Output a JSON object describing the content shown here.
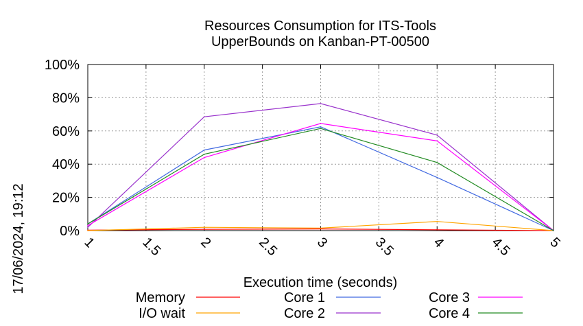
{
  "chart_data": {
    "type": "line",
    "title": "Resources Consumption for ITS-Tools",
    "subtitle": "UpperBounds on Kanban-PT-00500",
    "xlabel": "Execution time (seconds)",
    "ylabel": "",
    "timestamp": "17/06/2024, 19:12",
    "xlim": [
      1,
      5
    ],
    "ylim": [
      0,
      100
    ],
    "xticks": [
      "1",
      "1.5",
      "2",
      "2.5",
      "3",
      "3.5",
      "4",
      "4.5",
      "5"
    ],
    "yticks": [
      "0%",
      "20%",
      "40%",
      "60%",
      "80%",
      "100%"
    ],
    "grid": true,
    "legend_position": "bottom",
    "series": [
      {
        "name": "Memory",
        "color": "#ff0000",
        "x": [
          1,
          2,
          3,
          4,
          5
        ],
        "y": [
          0.3,
          0.8,
          1.0,
          0.5,
          0
        ]
      },
      {
        "name": "I/O wait",
        "color": "#ffa500",
        "x": [
          1,
          2,
          3,
          4,
          5
        ],
        "y": [
          0,
          2,
          1.5,
          5.5,
          0
        ]
      },
      {
        "name": "Core 1",
        "color": "#4169e1",
        "x": [
          1,
          2,
          3,
          4,
          5
        ],
        "y": [
          4,
          48.5,
          62.5,
          32,
          0
        ]
      },
      {
        "name": "Core 2",
        "color": "#9932cc",
        "x": [
          1,
          2,
          3,
          4,
          5
        ],
        "y": [
          2,
          68.5,
          76.5,
          57.5,
          0
        ]
      },
      {
        "name": "Core 3",
        "color": "#ff00ff",
        "x": [
          1,
          2,
          3,
          4,
          5
        ],
        "y": [
          3,
          44,
          64.5,
          54,
          0
        ]
      },
      {
        "name": "Core 4",
        "color": "#228b22",
        "x": [
          1,
          2,
          3,
          4,
          5
        ],
        "y": [
          4,
          46,
          61.5,
          41,
          0
        ]
      }
    ]
  }
}
